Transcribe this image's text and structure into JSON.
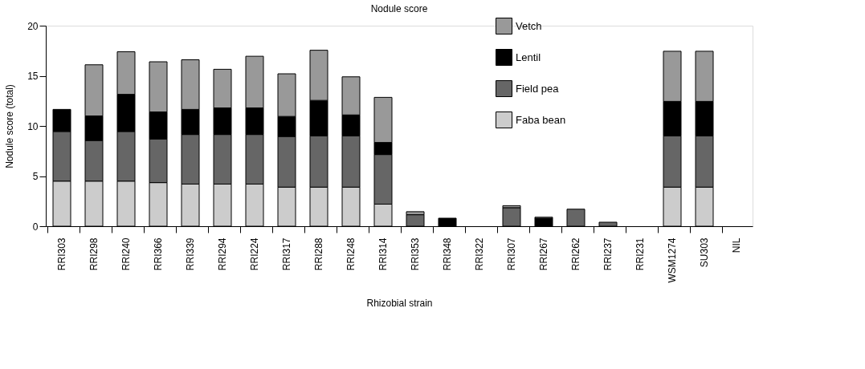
{
  "chart_data": {
    "type": "bar",
    "stacked": true,
    "title": "Nodule score",
    "xlabel": "Rhizobial strain",
    "ylabel": "Nodule score (total)",
    "categories": [
      "RRI303",
      "RRI298",
      "RRI240",
      "RRI366",
      "RRI339",
      "RRI294",
      "RRI224",
      "RRI317",
      "RRI288",
      "RRI248",
      "RRI314",
      "RRI353",
      "RRI348",
      "RRI322",
      "RRI307",
      "RRI267",
      "RRI262",
      "RRI237",
      "RRI231",
      "WSM1274",
      "SU303",
      "NIL"
    ],
    "series": [
      {
        "name": "Faba bean",
        "color": "#cccccc",
        "values": [
          4.5,
          4.5,
          4.5,
          4.35,
          4.2,
          4.2,
          4.2,
          3.9,
          3.9,
          3.9,
          2.2,
          0,
          0,
          0,
          0,
          0,
          0,
          0,
          0,
          3.9,
          3.9,
          0
        ]
      },
      {
        "name": "Field pea",
        "color": "#666666",
        "values": [
          4.95,
          4.05,
          4.95,
          4.35,
          4.95,
          4.95,
          4.95,
          5.05,
          5.1,
          5.1,
          4.95,
          1.15,
          0,
          0,
          1.85,
          0,
          1.7,
          0.4,
          0,
          5.1,
          5.1,
          0
        ]
      },
      {
        "name": "Lentil",
        "color": "#000000",
        "values": [
          2.2,
          2.45,
          3.7,
          2.7,
          2.5,
          2.65,
          2.65,
          2.0,
          3.55,
          2.1,
          1.2,
          0,
          0.8,
          0,
          0,
          0.8,
          0,
          0,
          0,
          3.45,
          3.45,
          0
        ]
      },
      {
        "name": "Vetch",
        "color": "#999999",
        "values": [
          0,
          5.1,
          4.25,
          5.0,
          4.95,
          3.85,
          5.15,
          4.25,
          5.0,
          3.8,
          4.5,
          0.3,
          0,
          0,
          0.2,
          0.1,
          0,
          0,
          0,
          5.0,
          5.0,
          0
        ]
      }
    ],
    "ylim": [
      0,
      20
    ],
    "yticks": [
      0,
      5,
      10,
      15,
      20
    ],
    "grid": false,
    "legend": "top right"
  }
}
